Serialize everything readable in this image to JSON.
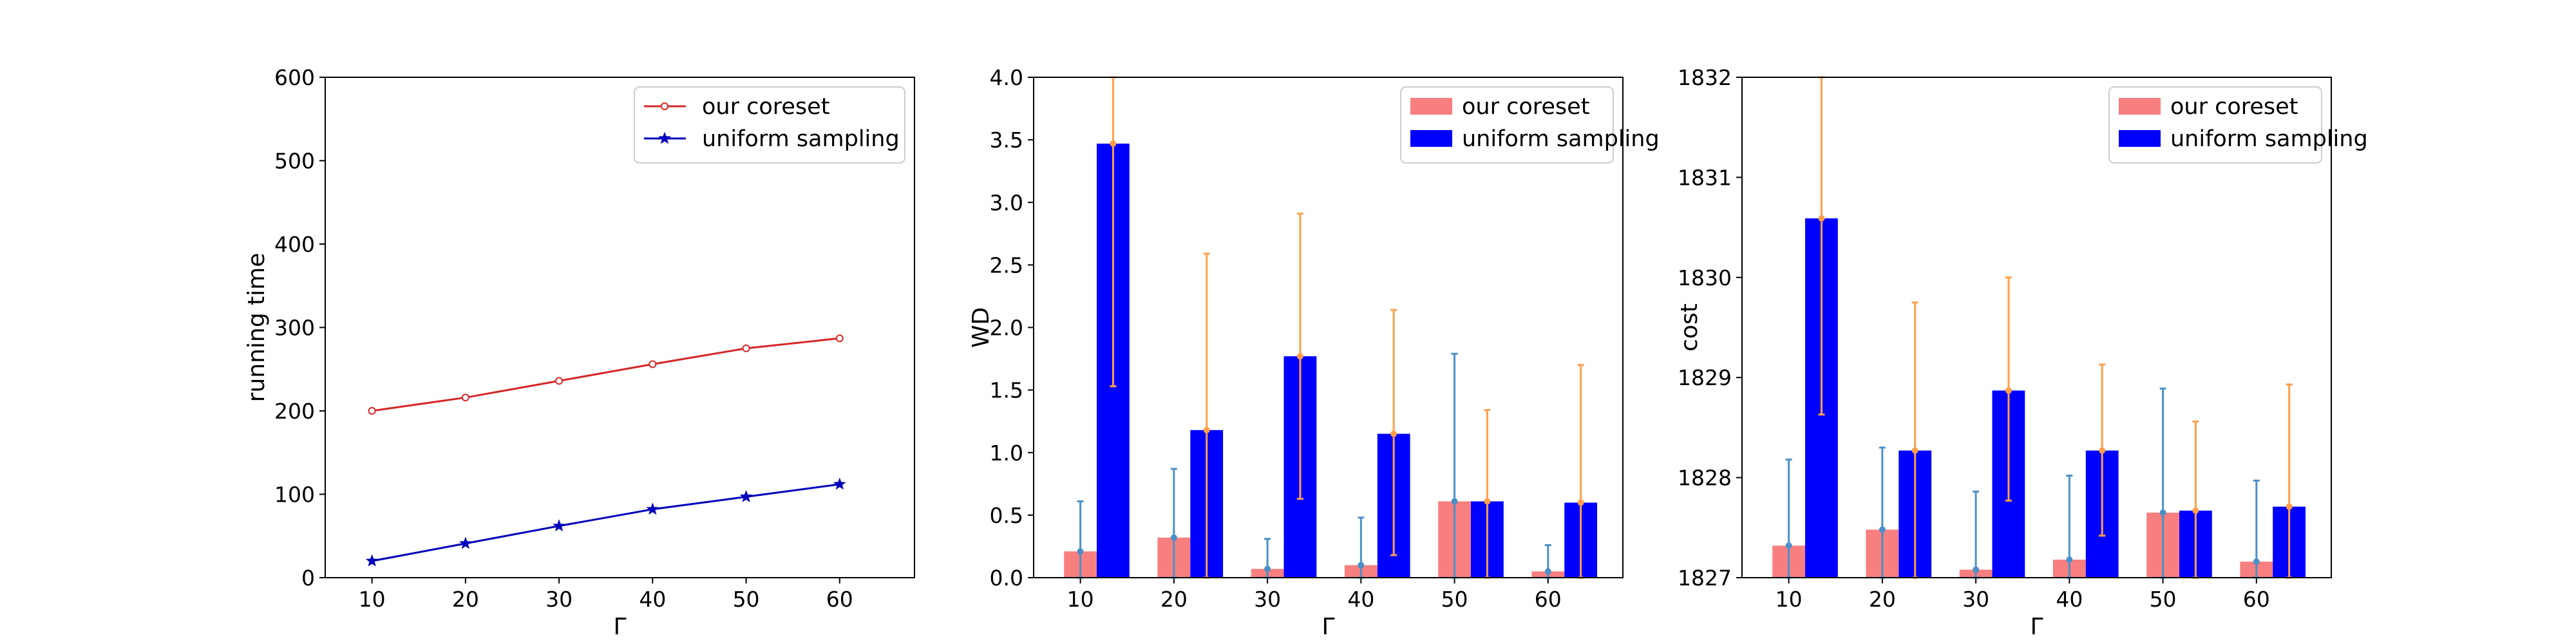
{
  "colors": {
    "coreset_line": "#d62728",
    "uniform_line": "#0000bb",
    "coreset_bar": "#f77f7f",
    "uniform_bar": "#0000ff",
    "errbar_coreset": "#4a90c8",
    "errbar_uniform": "#ff9f4a",
    "axis": "#000000"
  },
  "chart_data": [
    {
      "type": "line",
      "xlabel": "Γ",
      "ylabel": "running time",
      "xlim": [
        5,
        68
      ],
      "ylim": [
        0,
        600
      ],
      "xticks": [
        10,
        20,
        30,
        40,
        50,
        60
      ],
      "yticks": [
        0,
        100,
        200,
        300,
        400,
        500,
        600
      ],
      "x": [
        10,
        20,
        30,
        40,
        50,
        60
      ],
      "legend_position": "top-right",
      "series": [
        {
          "name": "our coreset",
          "marker": "circle",
          "values": [
            200,
            216,
            236,
            256,
            275,
            287
          ]
        },
        {
          "name": "uniform sampling",
          "marker": "star",
          "values": [
            20,
            41,
            62,
            82,
            97,
            112
          ]
        }
      ]
    },
    {
      "type": "bar",
      "xlabel": "Γ",
      "ylabel": "WD",
      "xlim": [
        5,
        68
      ],
      "ylim": [
        0,
        4.0
      ],
      "xticks": [
        10,
        20,
        30,
        40,
        50,
        60
      ],
      "ytick_labels": [
        "0.0",
        "0.5",
        "1.0",
        "1.5",
        "2.0",
        "2.5",
        "3.0",
        "3.5",
        "4.0"
      ],
      "categories": [
        10,
        20,
        30,
        40,
        50,
        60
      ],
      "legend_position": "top-right",
      "series": [
        {
          "name": "our coreset",
          "values": [
            0.21,
            0.32,
            0.07,
            0.1,
            0.61,
            0.05
          ],
          "err_low": [
            0.0,
            0.0,
            0.0,
            0.0,
            0.0,
            0.0
          ],
          "err_high": [
            0.61,
            0.87,
            0.31,
            0.48,
            1.79,
            0.26
          ]
        },
        {
          "name": "uniform sampling",
          "values": [
            3.47,
            1.18,
            1.77,
            1.15,
            0.61,
            0.6
          ],
          "err_low": [
            1.53,
            0.0,
            0.63,
            0.18,
            0.0,
            0.0
          ],
          "err_high": [
            4.0,
            2.59,
            2.91,
            2.14,
            1.34,
            1.7
          ]
        }
      ]
    },
    {
      "type": "bar",
      "xlabel": "Γ",
      "ylabel": "cost",
      "xlim": [
        5,
        68
      ],
      "ylim": [
        1827,
        1832
      ],
      "xticks": [
        10,
        20,
        30,
        40,
        50,
        60
      ],
      "yticks": [
        1827,
        1828,
        1829,
        1830,
        1831,
        1832
      ],
      "categories": [
        10,
        20,
        30,
        40,
        50,
        60
      ],
      "legend_position": "top-right",
      "series": [
        {
          "name": "our coreset",
          "values": [
            1827.32,
            1827.48,
            1827.08,
            1827.18,
            1827.65,
            1827.16
          ],
          "err_low": [
            1827.0,
            1827.0,
            1827.0,
            1827.0,
            1827.0,
            1827.0
          ],
          "err_high": [
            1828.18,
            1828.3,
            1827.86,
            1828.02,
            1828.89,
            1827.97
          ]
        },
        {
          "name": "uniform sampling",
          "values": [
            1830.59,
            1828.27,
            1828.87,
            1828.27,
            1827.67,
            1827.71
          ],
          "err_low": [
            1828.63,
            1827.0,
            1827.77,
            1827.42,
            1827.0,
            1827.0
          ],
          "err_high": [
            1832.0,
            1829.75,
            1830.0,
            1829.13,
            1828.56,
            1828.93
          ]
        }
      ]
    }
  ]
}
